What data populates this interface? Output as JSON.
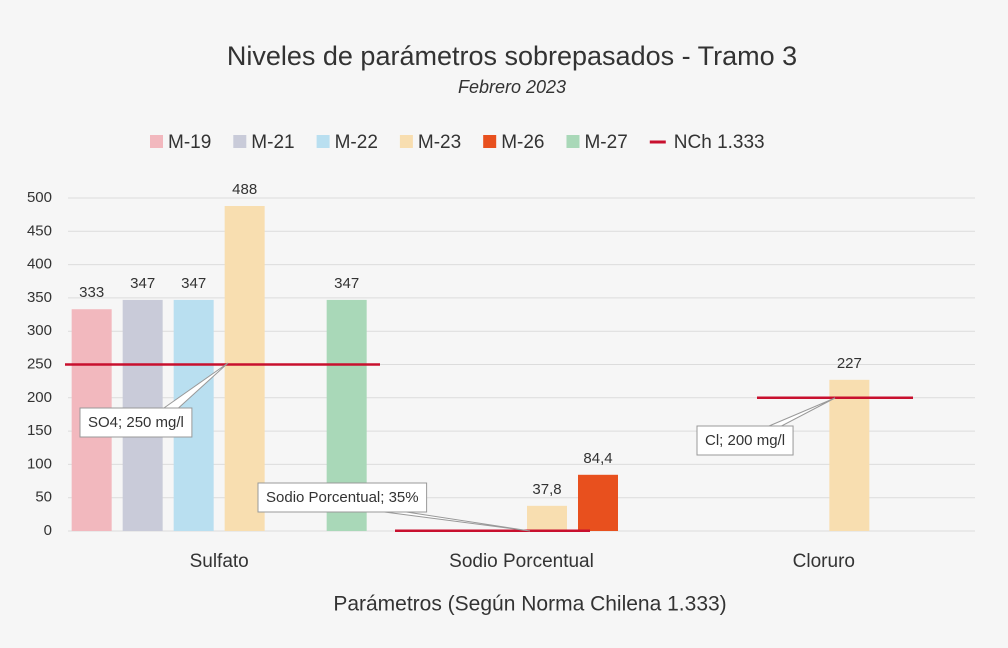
{
  "chart_data": {
    "type": "bar",
    "title": "Niveles de parámetros sobrepasados - Tramo 3",
    "subtitle": "Febrero 2023",
    "x_label": "Parámetros (Según Norma Chilena 1.333)",
    "categories": [
      "Sulfato",
      "Sodio Porcentual",
      "Cloruro"
    ],
    "series": [
      {
        "name": "M-19",
        "color": "#f2b8be",
        "values": [
          333,
          null,
          null
        ]
      },
      {
        "name": "M-21",
        "color": "#c9cbd9",
        "values": [
          347,
          null,
          null
        ]
      },
      {
        "name": "M-22",
        "color": "#b9dff0",
        "values": [
          347,
          null,
          null
        ]
      },
      {
        "name": "M-23",
        "color": "#f8deb0",
        "values": [
          488,
          37.8,
          227
        ],
        "value_labels": [
          "488",
          "37,8",
          "227"
        ]
      },
      {
        "name": "M-26",
        "color": "#e8501e",
        "values": [
          null,
          84.4,
          null
        ],
        "value_labels": [
          null,
          "84,4",
          null
        ]
      },
      {
        "name": "M-27",
        "color": "#a9d8b8",
        "values": [
          347,
          null,
          null
        ]
      }
    ],
    "limit": {
      "name": "NCh 1.333",
      "color": "#c8102e",
      "values": [
        250,
        0.35,
        200
      ]
    },
    "annotations": [
      "SO4; 250 mg/l",
      "Sodio Porcentual; 35%",
      "Cl; 200 mg/l"
    ],
    "ylim": [
      0,
      500
    ],
    "yticks": [
      0,
      50,
      100,
      150,
      200,
      250,
      300,
      350,
      400,
      450,
      500
    ],
    "grid": true
  }
}
